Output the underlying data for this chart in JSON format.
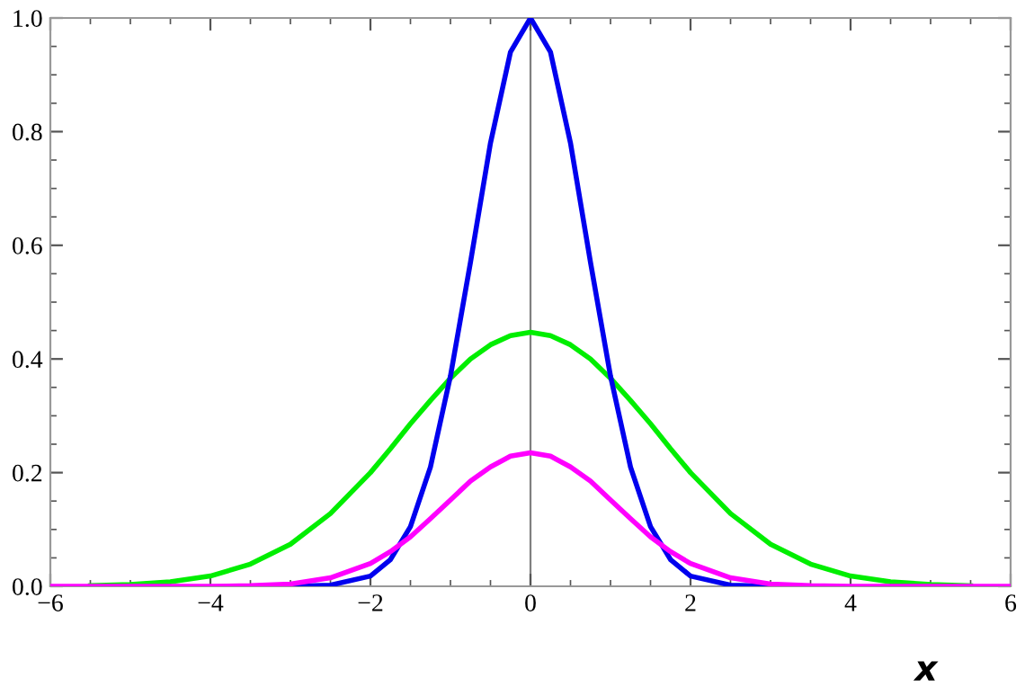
{
  "chart_data": {
    "type": "line",
    "xlabel": "x",
    "x": [
      -6,
      -5.5,
      -5,
      -4.5,
      -4,
      -3.5,
      -3,
      -2.5,
      -2,
      -1.75,
      -1.5,
      -1.25,
      -1,
      -0.75,
      -0.5,
      -0.25,
      0,
      0.25,
      0.5,
      0.75,
      1,
      1.25,
      1.5,
      1.75,
      2,
      2.5,
      3,
      3.5,
      4,
      4.5,
      5,
      5.5,
      6
    ],
    "series": [
      {
        "color": "#00ee00",
        "values": [
          null,
          0.001,
          0.003,
          0.008,
          0.018,
          0.039,
          0.074,
          0.128,
          0.2,
          0.242,
          0.286,
          0.327,
          0.366,
          0.4,
          0.425,
          0.441,
          0.447,
          0.441,
          0.425,
          0.4,
          0.366,
          0.327,
          0.286,
          0.242,
          0.2,
          0.128,
          0.074,
          0.039,
          0.018,
          0.008,
          0.003,
          0.001,
          null
        ]
      },
      {
        "color": "#0000ee",
        "values": [
          null,
          null,
          null,
          null,
          null,
          null,
          0,
          0.002,
          0.018,
          0.047,
          0.105,
          0.21,
          0.37,
          0.57,
          0.78,
          0.94,
          1,
          0.94,
          0.78,
          0.57,
          0.37,
          0.21,
          0.105,
          0.047,
          0.018,
          0.002,
          0,
          null,
          null,
          null,
          null,
          null,
          null
        ]
      },
      {
        "color": "#ff00ff",
        "values": [
          0,
          0,
          0,
          0,
          0,
          0.001,
          0.004,
          0.015,
          0.04,
          0.061,
          0.087,
          0.119,
          0.152,
          0.185,
          0.21,
          0.229,
          0.235,
          0.229,
          0.21,
          0.185,
          0.152,
          0.119,
          0.087,
          0.061,
          0.04,
          0.015,
          0.004,
          0.001,
          0,
          0,
          0,
          0,
          0
        ]
      }
    ],
    "xlim": [
      -6,
      6
    ],
    "ylim": [
      0,
      1
    ],
    "xticks": [
      {
        "value": -6,
        "label": "−6"
      },
      {
        "value": -4,
        "label": "−4"
      },
      {
        "value": -2,
        "label": "−2"
      },
      0,
      2,
      4,
      6
    ],
    "yticks": [
      {
        "value": 0,
        "label": "0.0"
      },
      {
        "value": 0.2,
        "label": "0.2"
      },
      {
        "value": 0.4,
        "label": "0.4"
      },
      {
        "value": 0.6,
        "label": "0.6"
      },
      {
        "value": 0.8,
        "label": "0.8"
      },
      {
        "value": 1,
        "label": "1.0"
      }
    ],
    "ref_lines": [
      {
        "axis": "x",
        "value": 0,
        "color": "#808080"
      }
    ],
    "marker": "none",
    "line_style": "solid"
  }
}
